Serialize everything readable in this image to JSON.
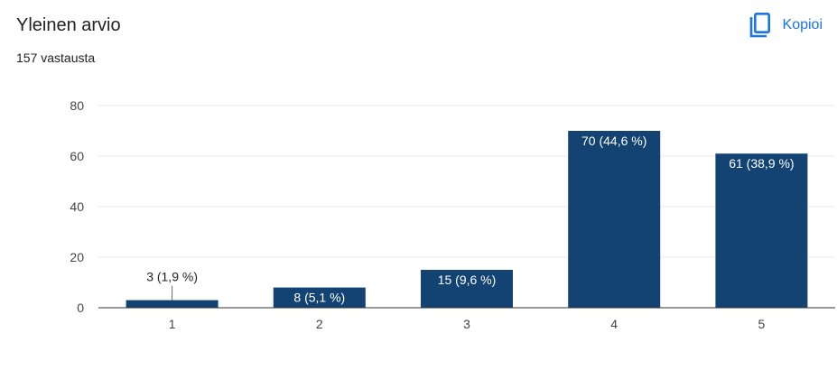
{
  "header": {
    "title": "Yleinen arvio",
    "subtitle": "157 vastausta",
    "copy_label": "Kopioi"
  },
  "colors": {
    "bar": "#134373",
    "accent": "#1a73e8",
    "grid": "#e8e8e8",
    "axis": "#333333"
  },
  "chart_data": {
    "type": "bar",
    "categories": [
      "1",
      "2",
      "3",
      "4",
      "5"
    ],
    "values": [
      3,
      8,
      15,
      70,
      61
    ],
    "data_labels": [
      "3 (1,9 %)",
      "8 (5,1 %)",
      "15 (9,6 %)",
      "70 (44,6 %)",
      "61 (38,9 %)"
    ],
    "yticks": [
      0,
      20,
      40,
      60,
      80
    ],
    "ylim": [
      0,
      80
    ],
    "grid": true,
    "legend": "none"
  }
}
